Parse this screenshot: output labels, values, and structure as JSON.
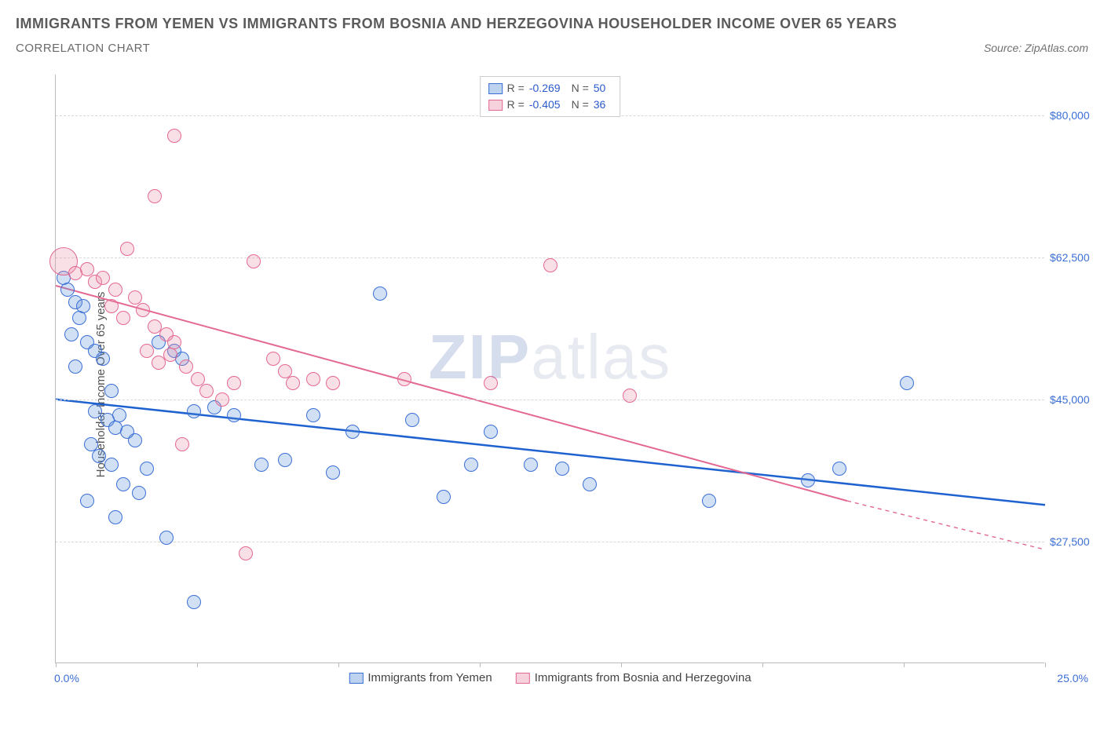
{
  "title": "IMMIGRANTS FROM YEMEN VS IMMIGRANTS FROM BOSNIA AND HERZEGOVINA HOUSEHOLDER INCOME OVER 65 YEARS",
  "subtitle": "CORRELATION CHART",
  "source_prefix": "Source: ",
  "source": "ZipAtlas.com",
  "ylabel": "Householder Income Over 65 years",
  "watermark_a": "ZIP",
  "watermark_b": "atlas",
  "chart": {
    "type": "scatter",
    "background_color": "#ffffff",
    "grid_color": "#d8d8d8",
    "axis_color": "#bbbbbb",
    "xlim": [
      0,
      25
    ],
    "ylim": [
      12500,
      85000
    ],
    "x_tick_positions": [
      0,
      3.57,
      7.14,
      10.71,
      14.29,
      17.86,
      21.43,
      25
    ],
    "x_lim_labels": {
      "min": "0.0%",
      "max": "25.0%"
    },
    "y_ticks": [
      {
        "value": 27500,
        "label": "$27,500"
      },
      {
        "value": 45000,
        "label": "$45,000"
      },
      {
        "value": 62500,
        "label": "$62,500"
      },
      {
        "value": 80000,
        "label": "$80,000"
      }
    ],
    "point_radius": 9,
    "point_border_width": 1,
    "point_fill_opacity": 0.28,
    "series": [
      {
        "name": "Immigrants from Yemen",
        "color": "#5a8fd6",
        "border_color": "#3b6fd6",
        "R": "-0.269",
        "N": "50",
        "trend": {
          "x1": 0,
          "y1": 45000,
          "x2": 25,
          "y2": 32000,
          "color": "#1e62d0",
          "width": 2.5
        },
        "points": [
          [
            0.2,
            60000
          ],
          [
            0.3,
            58500
          ],
          [
            0.5,
            57000
          ],
          [
            0.6,
            55000
          ],
          [
            0.7,
            56500
          ],
          [
            0.4,
            53000
          ],
          [
            0.8,
            52000
          ],
          [
            1.0,
            51000
          ],
          [
            1.2,
            50000
          ],
          [
            0.5,
            49000
          ],
          [
            1.4,
            46000
          ],
          [
            1.6,
            43000
          ],
          [
            1.0,
            43500
          ],
          [
            1.3,
            42500
          ],
          [
            1.5,
            41500
          ],
          [
            1.8,
            41000
          ],
          [
            2.0,
            40000
          ],
          [
            0.9,
            39500
          ],
          [
            1.1,
            38000
          ],
          [
            1.4,
            37000
          ],
          [
            2.3,
            36500
          ],
          [
            1.7,
            34500
          ],
          [
            2.1,
            33500
          ],
          [
            0.8,
            32500
          ],
          [
            1.5,
            30500
          ],
          [
            2.8,
            28000
          ],
          [
            3.5,
            20000
          ],
          [
            2.6,
            52000
          ],
          [
            3.0,
            51000
          ],
          [
            3.2,
            50000
          ],
          [
            3.5,
            43500
          ],
          [
            4.0,
            44000
          ],
          [
            4.5,
            43000
          ],
          [
            5.2,
            37000
          ],
          [
            5.8,
            37500
          ],
          [
            6.5,
            43000
          ],
          [
            7.0,
            36000
          ],
          [
            7.5,
            41000
          ],
          [
            8.2,
            58000
          ],
          [
            9.0,
            42500
          ],
          [
            9.8,
            33000
          ],
          [
            10.5,
            37000
          ],
          [
            11.0,
            41000
          ],
          [
            12.0,
            37000
          ],
          [
            12.8,
            36500
          ],
          [
            13.5,
            34500
          ],
          [
            16.5,
            32500
          ],
          [
            19.0,
            35000
          ],
          [
            19.8,
            36500
          ],
          [
            21.5,
            47000
          ]
        ]
      },
      {
        "name": "Immigrants from Bosnia and Herzegovina",
        "color": "#e98fa8",
        "border_color": "#e36893",
        "R": "-0.405",
        "N": "36",
        "trend": {
          "x1": 0,
          "y1": 59000,
          "x2": 20,
          "y2": 32500,
          "dash_x2": 25,
          "dash_y2": 26500,
          "color": "#e36893",
          "width": 2
        },
        "points": [
          [
            0.2,
            62000,
            18
          ],
          [
            0.5,
            60500
          ],
          [
            0.8,
            61000
          ],
          [
            1.0,
            59500
          ],
          [
            1.2,
            60000
          ],
          [
            1.5,
            58500
          ],
          [
            1.8,
            63500
          ],
          [
            2.0,
            57500
          ],
          [
            2.2,
            56000
          ],
          [
            2.5,
            54000
          ],
          [
            2.8,
            53000
          ],
          [
            3.0,
            52000
          ],
          [
            1.4,
            56500
          ],
          [
            1.7,
            55000
          ],
          [
            2.3,
            51000
          ],
          [
            2.6,
            49500
          ],
          [
            2.9,
            50500
          ],
          [
            3.3,
            49000
          ],
          [
            3.6,
            47500
          ],
          [
            3.0,
            77500
          ],
          [
            2.5,
            70000
          ],
          [
            3.8,
            46000
          ],
          [
            4.2,
            45000
          ],
          [
            3.2,
            39500
          ],
          [
            4.5,
            47000
          ],
          [
            4.8,
            26000
          ],
          [
            5.0,
            62000
          ],
          [
            5.5,
            50000
          ],
          [
            5.8,
            48500
          ],
          [
            6.0,
            47000
          ],
          [
            6.5,
            47500
          ],
          [
            7.0,
            47000
          ],
          [
            8.8,
            47500
          ],
          [
            11.0,
            47000
          ],
          [
            12.5,
            61500
          ],
          [
            14.5,
            45500
          ]
        ]
      }
    ]
  },
  "legend_labels": {
    "R": "R =",
    "N": "N ="
  }
}
